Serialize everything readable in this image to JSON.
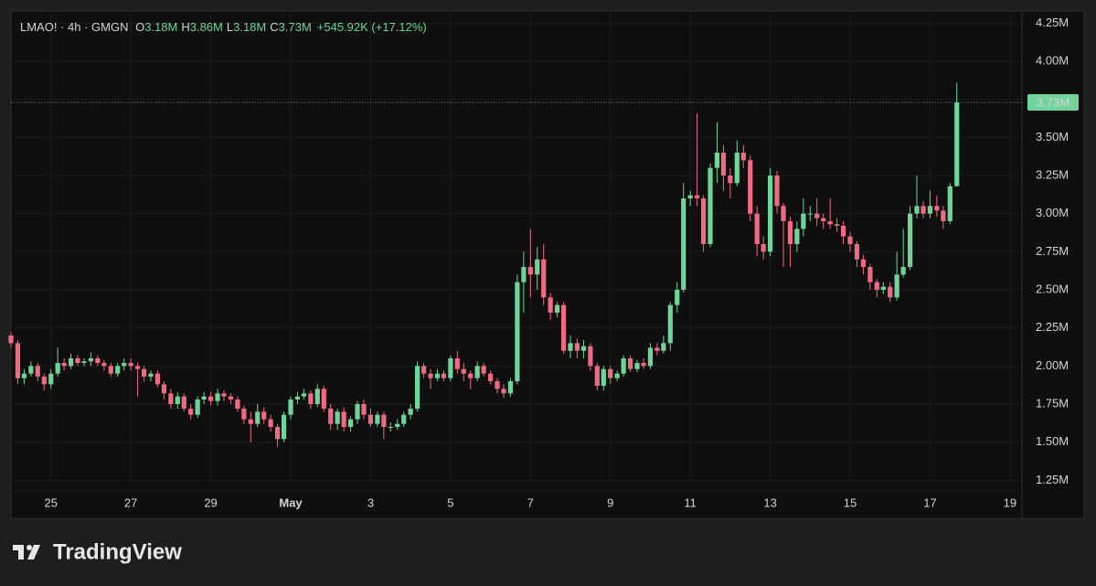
{
  "chart_data": {
    "type": "candlestick",
    "header": {
      "symbol": "LMAO! · 4h · GMGN",
      "ohlc": [
        {
          "key": "O",
          "value": "3.18M"
        },
        {
          "key": "H",
          "value": "3.86M"
        },
        {
          "key": "L",
          "value": "3.18M"
        },
        {
          "key": "C",
          "value": "3.73M"
        }
      ],
      "change": "+545.92K (+17.12%)"
    },
    "up_color": "#6fd39a",
    "down_color": "#ee6b83",
    "grid": true,
    "ylim": [
      1.24,
      4.33
    ],
    "yticks": [
      {
        "value": 1.25,
        "label": "1.25M"
      },
      {
        "value": 1.5,
        "label": "1.50M"
      },
      {
        "value": 1.75,
        "label": "1.75M"
      },
      {
        "value": 2,
        "label": "2.00M"
      },
      {
        "value": 2.25,
        "label": "2.25M"
      },
      {
        "value": 2.5,
        "label": "2.50M"
      },
      {
        "value": 2.75,
        "label": "2.75M"
      },
      {
        "value": 3,
        "label": "3.00M"
      },
      {
        "value": 3.25,
        "label": "3.25M"
      },
      {
        "value": 3.5,
        "label": "3.50M"
      },
      {
        "value": 3.75,
        "label": "3.75M"
      },
      {
        "value": 4,
        "label": "4.00M"
      },
      {
        "value": 4.25,
        "label": "4.25M"
      }
    ],
    "xlim": [
      0,
      25.3
    ],
    "xticks": [
      {
        "value": 1,
        "label": "25"
      },
      {
        "value": 3,
        "label": "27"
      },
      {
        "value": 5,
        "label": "29"
      },
      {
        "value": 7,
        "label": "May"
      },
      {
        "value": 9,
        "label": "3"
      },
      {
        "value": 11,
        "label": "5"
      },
      {
        "value": 13,
        "label": "7"
      },
      {
        "value": 15,
        "label": "9"
      },
      {
        "value": 17,
        "label": "11"
      },
      {
        "value": 19,
        "label": "13"
      },
      {
        "value": 21,
        "label": "15"
      },
      {
        "value": 23,
        "label": "17"
      },
      {
        "value": 25,
        "label": "19"
      }
    ],
    "last_price": {
      "value": 3.73,
      "label": "3.73M"
    },
    "x": [
      0,
      0.17,
      0.33,
      0.5,
      0.67,
      0.83,
      1,
      1.17,
      1.33,
      1.5,
      1.67,
      1.83,
      2,
      2.17,
      2.33,
      2.5,
      2.67,
      2.83,
      3,
      3.17,
      3.33,
      3.5,
      3.67,
      3.83,
      4,
      4.17,
      4.33,
      4.5,
      4.67,
      4.83,
      5,
      5.17,
      5.33,
      5.5,
      5.67,
      5.83,
      6,
      6.17,
      6.33,
      6.5,
      6.67,
      6.83,
      7,
      7.17,
      7.33,
      7.5,
      7.67,
      7.83,
      8,
      8.17,
      8.33,
      8.5,
      8.67,
      8.83,
      9,
      9.17,
      9.33,
      9.5,
      9.67,
      9.83,
      10,
      10.17,
      10.33,
      10.5,
      10.67,
      10.83,
      11,
      11.17,
      11.33,
      11.5,
      11.67,
      11.83,
      12,
      12.17,
      12.33,
      12.5,
      12.67,
      12.83,
      13,
      13.17,
      13.33,
      13.5,
      13.67,
      13.83,
      14,
      14.17,
      14.33,
      14.5,
      14.67,
      14.83,
      15,
      15.17,
      15.33,
      15.5,
      15.67,
      15.83,
      16,
      16.17,
      16.33,
      16.5,
      16.67,
      16.83,
      17,
      17.17,
      17.33,
      17.5,
      17.67,
      17.83,
      18,
      18.17,
      18.33,
      18.5,
      18.67,
      18.83,
      19,
      19.17,
      19.33,
      19.5,
      19.67,
      19.83,
      20,
      20.17,
      20.33,
      20.5,
      20.67,
      20.83,
      21,
      21.17,
      21.33,
      21.5,
      21.67,
      21.83,
      22,
      22.17,
      22.33,
      22.5,
      22.67,
      22.83,
      23,
      23.17,
      23.33,
      23.5,
      23.67
    ],
    "open": [
      2.2,
      2.15,
      1.92,
      1.95,
      2.0,
      1.93,
      1.88,
      1.95,
      2.02,
      2.0,
      2.05,
      2.02,
      2.03,
      2.05,
      2.02,
      2.0,
      1.95,
      2.0,
      2.02,
      2.0,
      1.98,
      1.93,
      1.95,
      1.88,
      1.82,
      1.75,
      1.8,
      1.72,
      1.68,
      1.78,
      1.8,
      1.77,
      1.82,
      1.8,
      1.78,
      1.72,
      1.65,
      1.62,
      1.7,
      1.65,
      1.6,
      1.52,
      1.68,
      1.78,
      1.8,
      1.82,
      1.75,
      1.85,
      1.72,
      1.62,
      1.7,
      1.6,
      1.65,
      1.75,
      1.68,
      1.62,
      1.68,
      1.6,
      1.6,
      1.62,
      1.68,
      1.72,
      2.0,
      1.95,
      1.92,
      1.95,
      1.92,
      2.05,
      1.98,
      1.95,
      1.92,
      2.0,
      1.95,
      1.9,
      1.85,
      1.82,
      1.9,
      2.55,
      2.65,
      2.6,
      2.7,
      2.45,
      2.35,
      2.4,
      2.1,
      2.15,
      2.1,
      2.13,
      2.0,
      1.87,
      1.98,
      1.92,
      1.95,
      2.05,
      1.98,
      2.02,
      2.0,
      2.12,
      2.1,
      2.15,
      2.4,
      2.5,
      3.1,
      3.12,
      3.1,
      2.8,
      3.3,
      3.4,
      3.25,
      3.2,
      3.4,
      3.35,
      3.0,
      2.8,
      2.75,
      3.25,
      3.05,
      2.95,
      2.8,
      2.9,
      3.0,
      3.0,
      2.97,
      2.95,
      2.93,
      2.92,
      2.85,
      2.8,
      2.7,
      2.65,
      2.55,
      2.5,
      2.52,
      2.45,
      2.6,
      2.65,
      3.0,
      3.05,
      3.0,
      3.05,
      3.02,
      2.95,
      3.18
    ],
    "high": [
      2.22,
      2.17,
      1.98,
      2.03,
      2.02,
      1.95,
      1.98,
      2.12,
      2.05,
      2.08,
      2.07,
      2.05,
      2.09,
      2.07,
      2.04,
      2.02,
      2.02,
      2.05,
      2.05,
      2.02,
      2.0,
      1.97,
      1.97,
      1.9,
      1.85,
      1.83,
      1.82,
      1.75,
      1.8,
      1.83,
      1.83,
      1.85,
      1.84,
      1.82,
      1.8,
      1.74,
      1.7,
      1.75,
      1.73,
      1.68,
      1.62,
      1.7,
      1.8,
      1.83,
      1.85,
      1.84,
      1.88,
      1.87,
      1.75,
      1.72,
      1.73,
      1.67,
      1.77,
      1.78,
      1.72,
      1.7,
      1.7,
      1.63,
      1.65,
      1.7,
      1.75,
      2.03,
      2.02,
      1.98,
      1.98,
      1.97,
      2.07,
      2.1,
      2.02,
      1.97,
      2.03,
      2.02,
      1.97,
      1.92,
      1.88,
      1.92,
      2.6,
      2.75,
      2.9,
      2.78,
      2.8,
      2.48,
      2.42,
      2.42,
      2.2,
      2.18,
      2.17,
      2.15,
      2.02,
      2.0,
      2.0,
      1.97,
      2.07,
      2.07,
      2.04,
      2.05,
      2.15,
      2.15,
      2.2,
      2.42,
      2.55,
      3.2,
      3.15,
      3.66,
      3.12,
      3.33,
      3.6,
      3.45,
      3.3,
      3.48,
      3.45,
      3.38,
      3.05,
      2.85,
      3.3,
      3.28,
      3.07,
      2.98,
      2.95,
      3.1,
      3.05,
      3.1,
      3.0,
      3.1,
      2.97,
      2.95,
      2.88,
      2.82,
      2.73,
      2.67,
      2.57,
      2.55,
      2.55,
      2.75,
      2.9,
      3.05,
      3.25,
      3.08,
      3.15,
      3.12,
      3.05,
      3.2,
      3.86
    ],
    "low": [
      2.12,
      1.88,
      1.88,
      1.93,
      1.9,
      1.84,
      1.85,
      1.93,
      1.97,
      1.98,
      2.0,
      2.0,
      2.0,
      2.0,
      1.97,
      1.93,
      1.93,
      1.97,
      1.97,
      1.8,
      1.9,
      1.9,
      1.86,
      1.78,
      1.72,
      1.72,
      1.7,
      1.65,
      1.66,
      1.75,
      1.74,
      1.74,
      1.77,
      1.75,
      1.7,
      1.62,
      1.5,
      1.6,
      1.62,
      1.57,
      1.47,
      1.5,
      1.65,
      1.75,
      1.78,
      1.72,
      1.73,
      1.7,
      1.58,
      1.58,
      1.57,
      1.57,
      1.62,
      1.65,
      1.6,
      1.6,
      1.52,
      1.57,
      1.58,
      1.6,
      1.65,
      1.7,
      1.92,
      1.85,
      1.9,
      1.9,
      1.9,
      1.95,
      1.9,
      1.85,
      1.9,
      1.93,
      1.88,
      1.82,
      1.79,
      1.8,
      1.88,
      2.35,
      2.45,
      2.5,
      2.4,
      2.3,
      2.32,
      2.08,
      2.05,
      2.05,
      2.05,
      1.97,
      1.84,
      1.84,
      1.88,
      1.9,
      1.93,
      1.96,
      1.96,
      1.98,
      1.98,
      2.07,
      2.08,
      2.1,
      2.35,
      2.48,
      3.05,
      3.05,
      2.75,
      2.78,
      3.2,
      3.15,
      3.1,
      3.18,
      3.3,
      2.95,
      2.72,
      2.7,
      2.72,
      3.0,
      2.65,
      2.65,
      2.75,
      2.85,
      2.95,
      2.92,
      2.9,
      2.9,
      2.88,
      2.8,
      2.75,
      2.65,
      2.6,
      2.5,
      2.45,
      2.47,
      2.42,
      2.43,
      2.58,
      2.63,
      2.97,
      2.97,
      2.97,
      2.98,
      2.9,
      2.93,
      3.18
    ],
    "close": [
      2.15,
      1.92,
      1.95,
      2.0,
      1.93,
      1.88,
      1.95,
      2.02,
      2.0,
      2.05,
      2.02,
      2.03,
      2.05,
      2.02,
      2.0,
      1.95,
      2.0,
      2.02,
      2.0,
      1.98,
      1.93,
      1.95,
      1.88,
      1.82,
      1.75,
      1.8,
      1.72,
      1.68,
      1.78,
      1.8,
      1.77,
      1.82,
      1.8,
      1.78,
      1.72,
      1.65,
      1.62,
      1.7,
      1.65,
      1.6,
      1.52,
      1.68,
      1.78,
      1.8,
      1.82,
      1.75,
      1.85,
      1.72,
      1.62,
      1.7,
      1.6,
      1.65,
      1.75,
      1.68,
      1.62,
      1.68,
      1.6,
      1.6,
      1.62,
      1.68,
      1.72,
      2.0,
      1.95,
      1.92,
      1.95,
      1.92,
      2.05,
      1.98,
      1.95,
      1.92,
      2.0,
      1.95,
      1.9,
      1.85,
      1.82,
      1.9,
      2.55,
      2.65,
      2.6,
      2.7,
      2.45,
      2.35,
      2.4,
      2.1,
      2.15,
      2.1,
      2.13,
      2.0,
      1.87,
      1.98,
      1.92,
      1.95,
      2.05,
      1.98,
      2.02,
      2.0,
      2.12,
      2.1,
      2.15,
      2.4,
      2.5,
      3.1,
      3.12,
      3.1,
      2.8,
      3.3,
      3.4,
      3.25,
      3.2,
      3.4,
      3.35,
      3.0,
      2.8,
      2.75,
      3.25,
      3.05,
      2.95,
      2.8,
      2.9,
      3.0,
      3.0,
      2.97,
      2.95,
      2.93,
      2.92,
      2.85,
      2.8,
      2.7,
      2.65,
      2.55,
      2.5,
      2.52,
      2.45,
      2.6,
      2.65,
      3.0,
      3.05,
      3.0,
      3.05,
      3.02,
      2.95,
      3.18,
      3.73
    ],
    "brand": "TradingView"
  }
}
